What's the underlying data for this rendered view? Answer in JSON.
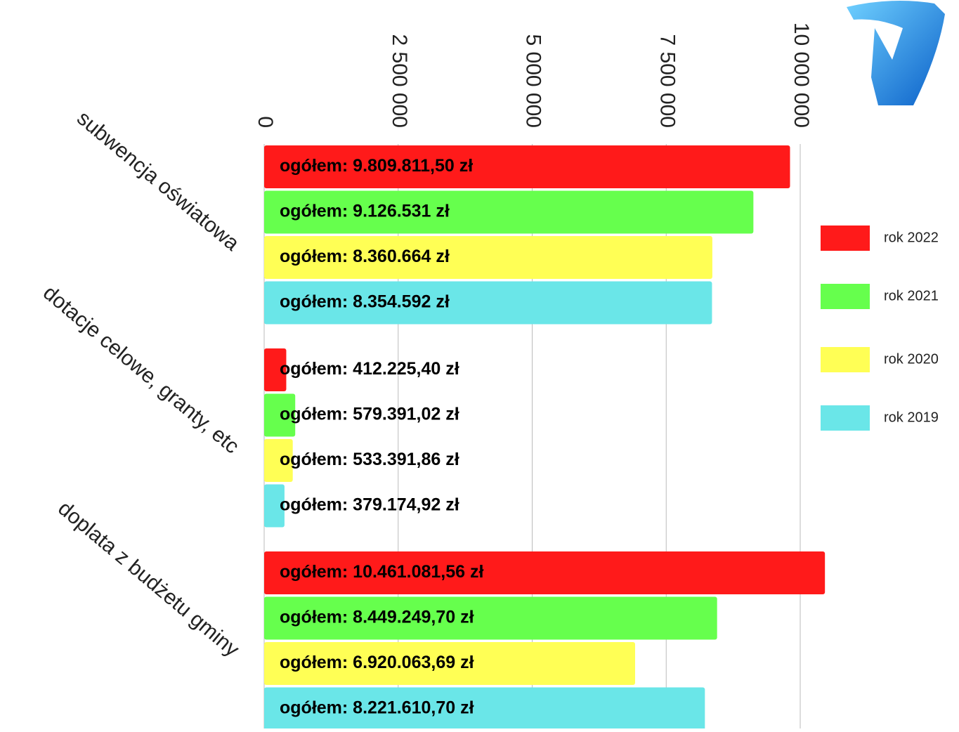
{
  "chart_data": {
    "type": "barh",
    "categories": [
      "subwencja oświatowa",
      "dotacje celowe, granty, etc",
      "doplata z budżetu gminy"
    ],
    "series": [
      {
        "name": "rok 2022",
        "color": "#ff1a1a",
        "values": [
          9809811.5,
          412225.4,
          10461081.56
        ],
        "value_labels": [
          "ogółem: 9.809.811,50 zł",
          "ogółem: 412.225,40 zł",
          "ogółem: 10.461.081,56 zł"
        ]
      },
      {
        "name": "rok 2021",
        "color": "#66ff4d",
        "values": [
          9126531,
          579391.02,
          8449249.7
        ],
        "value_labels": [
          "ogółem: 9.126.531 zł",
          "ogółem: 579.391,02 zł",
          "ogółem: 8.449.249,70 zł"
        ]
      },
      {
        "name": "rok 2020",
        "color": "#ffff55",
        "values": [
          8360664,
          533391.86,
          6920063.69
        ],
        "value_labels": [
          "ogółem: 8.360.664 zł",
          "ogółem: 533.391,86 zł",
          "ogółem: 6.920.063,69 zł"
        ]
      },
      {
        "name": "rok 2019",
        "color": "#6ae6e8",
        "values": [
          8354592,
          379174.92,
          8221610.7
        ],
        "value_labels": [
          "ogółem: 8.354.592 zł",
          "ogółem: 379.174,92 zł",
          "ogółem: 8.221.610,70 zł"
        ]
      }
    ],
    "xlim": [
      0,
      10000000
    ],
    "xticks": [
      0,
      {
        "value": 2500000,
        "label": "2 500 000"
      },
      {
        "value": 5000000,
        "label": "5 000 000"
      },
      {
        "value": 7500000,
        "label": "7 500 000"
      },
      {
        "value": 10000000,
        "label": "10 000 000"
      }
    ],
    "grid": true,
    "legend": "right"
  }
}
